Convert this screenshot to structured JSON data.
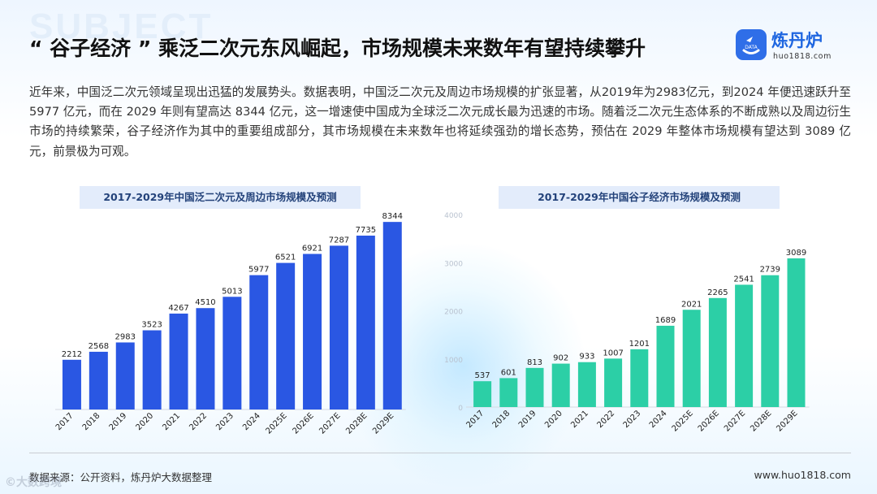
{
  "watermark": "SUBJECT",
  "title": "“ 谷子经济 ” 乘泛二次元东风崛起，市场规模未来数年有望持续攀升",
  "brand": {
    "name": "炼丹炉",
    "url": "huo1818.com",
    "icon_text": "DATA",
    "icon": "data-logo-icon"
  },
  "intro": "近年来，中国泛二次元领域呈现出迅猛的发展势头。数据表明，中国泛二次元及周边市场规模的扩张显著，从2019年为2983亿元，到2024 年便迅速跃升至 5977 亿元，而在 2029 年则有望高达 8344 亿元，这一增速使中国成为全球泛二次元成长最为迅速的市场。随着泛二次元生态体系的不断成熟以及周边衍生市场的持续繁荣，谷子经济作为其中的重要组成部分，其市场规模在未来数年也将延续强劲的增长态势，预估在 2029 年整体市场规模有望达到 3089 亿元，前景极为可观。",
  "colors": {
    "chart1_bar": "#2a57e3",
    "chart2_bar": "#2ccfa6",
    "accent": "#1f66e0"
  },
  "chart_data": [
    {
      "type": "bar",
      "title": "2017-2029年中国泛二次元及周边市场规模及预测",
      "categories": [
        "2017",
        "2018",
        "2019",
        "2020",
        "2021",
        "2022",
        "2023",
        "2024",
        "2025E",
        "2026E",
        "2027E",
        "2028E",
        "2029E"
      ],
      "values": [
        2212,
        2568,
        2983,
        3523,
        4267,
        4510,
        5013,
        5977,
        6521,
        6921,
        7287,
        7735,
        8344
      ],
      "ylim": [
        0,
        9000
      ],
      "yticks": [
        0,
        3000,
        6000,
        9000
      ],
      "show_axis_labels": false,
      "grid": false
    },
    {
      "type": "bar",
      "title": "2017-2029年中国谷子经济市场规模及预测",
      "categories": [
        "2017",
        "2018",
        "2019",
        "2020",
        "2021",
        "2022",
        "2023",
        "2024",
        "2025E",
        "2026E",
        "2027E",
        "2028E",
        "2029E"
      ],
      "values": [
        537,
        601,
        813,
        902,
        933,
        1007,
        1201,
        1689,
        2021,
        2265,
        2541,
        2739,
        3089
      ],
      "ylim": [
        0,
        4000
      ],
      "yticks": [
        0,
        1000,
        2000,
        3000,
        4000
      ],
      "show_axis_labels": true,
      "grid": false
    }
  ],
  "footer": {
    "source": "数据来源：公开资料，炼丹炉大数据整理",
    "url": "www.huo1818.com"
  },
  "corner_watermark": "©大数跨境"
}
